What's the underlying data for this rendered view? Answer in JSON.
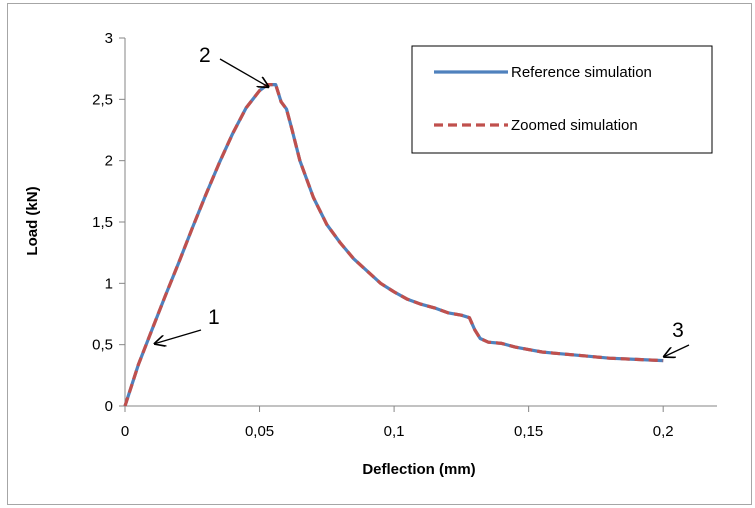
{
  "chart_data": {
    "type": "line",
    "xlabel": "Deflection (mm)",
    "ylabel": "Load (kN)",
    "xlim": [
      0,
      0.22
    ],
    "ylim": [
      0,
      3
    ],
    "x_ticks": [
      0,
      0.05,
      0.1,
      0.15,
      0.2
    ],
    "x_tick_labels": [
      "0",
      "0,05",
      "0,1",
      "0,15",
      "0,2"
    ],
    "y_ticks": [
      0,
      0.5,
      1,
      1.5,
      2,
      2.5,
      3
    ],
    "y_tick_labels": [
      "0",
      "0,5",
      "1",
      "1,5",
      "2",
      "2,5",
      "3"
    ],
    "grid": false,
    "legend_position": "top-right",
    "series": [
      {
        "name": "Reference simulation",
        "color": "#4f81bd",
        "style": "solid",
        "x": [
          0,
          0.005,
          0.01,
          0.015,
          0.02,
          0.025,
          0.03,
          0.035,
          0.04,
          0.045,
          0.05,
          0.053,
          0.056,
          0.058,
          0.06,
          0.062,
          0.065,
          0.07,
          0.075,
          0.08,
          0.085,
          0.09,
          0.095,
          0.1,
          0.105,
          0.11,
          0.115,
          0.12,
          0.125,
          0.128,
          0.13,
          0.132,
          0.135,
          0.14,
          0.145,
          0.15,
          0.155,
          0.16,
          0.17,
          0.18,
          0.19,
          0.2
        ],
        "y": [
          0,
          0.34,
          0.62,
          0.9,
          1.17,
          1.45,
          1.72,
          1.98,
          2.22,
          2.43,
          2.57,
          2.62,
          2.62,
          2.48,
          2.42,
          2.26,
          2.0,
          1.7,
          1.48,
          1.33,
          1.2,
          1.1,
          1.0,
          0.93,
          0.87,
          0.83,
          0.8,
          0.76,
          0.74,
          0.72,
          0.62,
          0.55,
          0.52,
          0.51,
          0.48,
          0.46,
          0.44,
          0.43,
          0.41,
          0.39,
          0.38,
          0.37
        ]
      },
      {
        "name": "Zoomed simulation",
        "color": "#c0504d",
        "style": "dashed",
        "x": [
          0,
          0.005,
          0.01,
          0.015,
          0.02,
          0.025,
          0.03,
          0.035,
          0.04,
          0.045,
          0.05,
          0.053,
          0.056,
          0.058,
          0.06,
          0.062,
          0.065,
          0.07,
          0.075,
          0.08,
          0.085,
          0.09,
          0.095,
          0.1,
          0.105,
          0.11,
          0.115,
          0.12,
          0.125,
          0.128,
          0.13,
          0.132,
          0.135,
          0.14,
          0.145,
          0.15,
          0.155,
          0.16,
          0.17,
          0.18,
          0.19,
          0.2
        ],
        "y": [
          0,
          0.34,
          0.62,
          0.9,
          1.17,
          1.45,
          1.72,
          1.98,
          2.22,
          2.43,
          2.57,
          2.62,
          2.62,
          2.48,
          2.42,
          2.26,
          2.0,
          1.7,
          1.48,
          1.33,
          1.2,
          1.1,
          1.0,
          0.93,
          0.87,
          0.83,
          0.8,
          0.76,
          0.74,
          0.72,
          0.62,
          0.55,
          0.52,
          0.51,
          0.48,
          0.46,
          0.44,
          0.43,
          0.41,
          0.39,
          0.38,
          0.37
        ]
      }
    ],
    "annotations": [
      {
        "text": "1",
        "x": 0.01,
        "y": 0.5
      },
      {
        "text": "2",
        "x": 0.054,
        "y": 2.61
      },
      {
        "text": "3",
        "x": 0.2,
        "y": 0.37
      }
    ]
  }
}
